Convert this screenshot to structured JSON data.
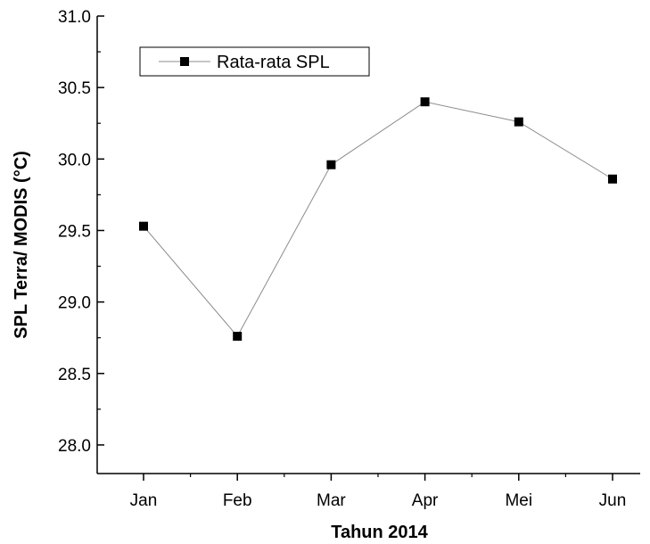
{
  "chart_data": {
    "type": "line",
    "title": "",
    "xlabel": "Tahun 2014",
    "ylabel": "SPL Terra/ MODIS (°C)",
    "categories": [
      "Jan",
      "Feb",
      "Mar",
      "Apr",
      "Mei",
      "Jun"
    ],
    "series": [
      {
        "name": "Rata-rata SPL",
        "values": [
          29.53,
          28.76,
          29.96,
          30.4,
          30.26,
          29.86
        ]
      }
    ],
    "ylim": [
      27.8,
      31.0
    ],
    "yticks": [
      "28.0",
      "28.5",
      "29.0",
      "29.5",
      "30.0",
      "30.5",
      "31.0"
    ],
    "grid": false,
    "legend_position": "top-left",
    "colors": {
      "line": "#8c8c8c",
      "marker": "#000000",
      "axis": "#000000"
    }
  }
}
